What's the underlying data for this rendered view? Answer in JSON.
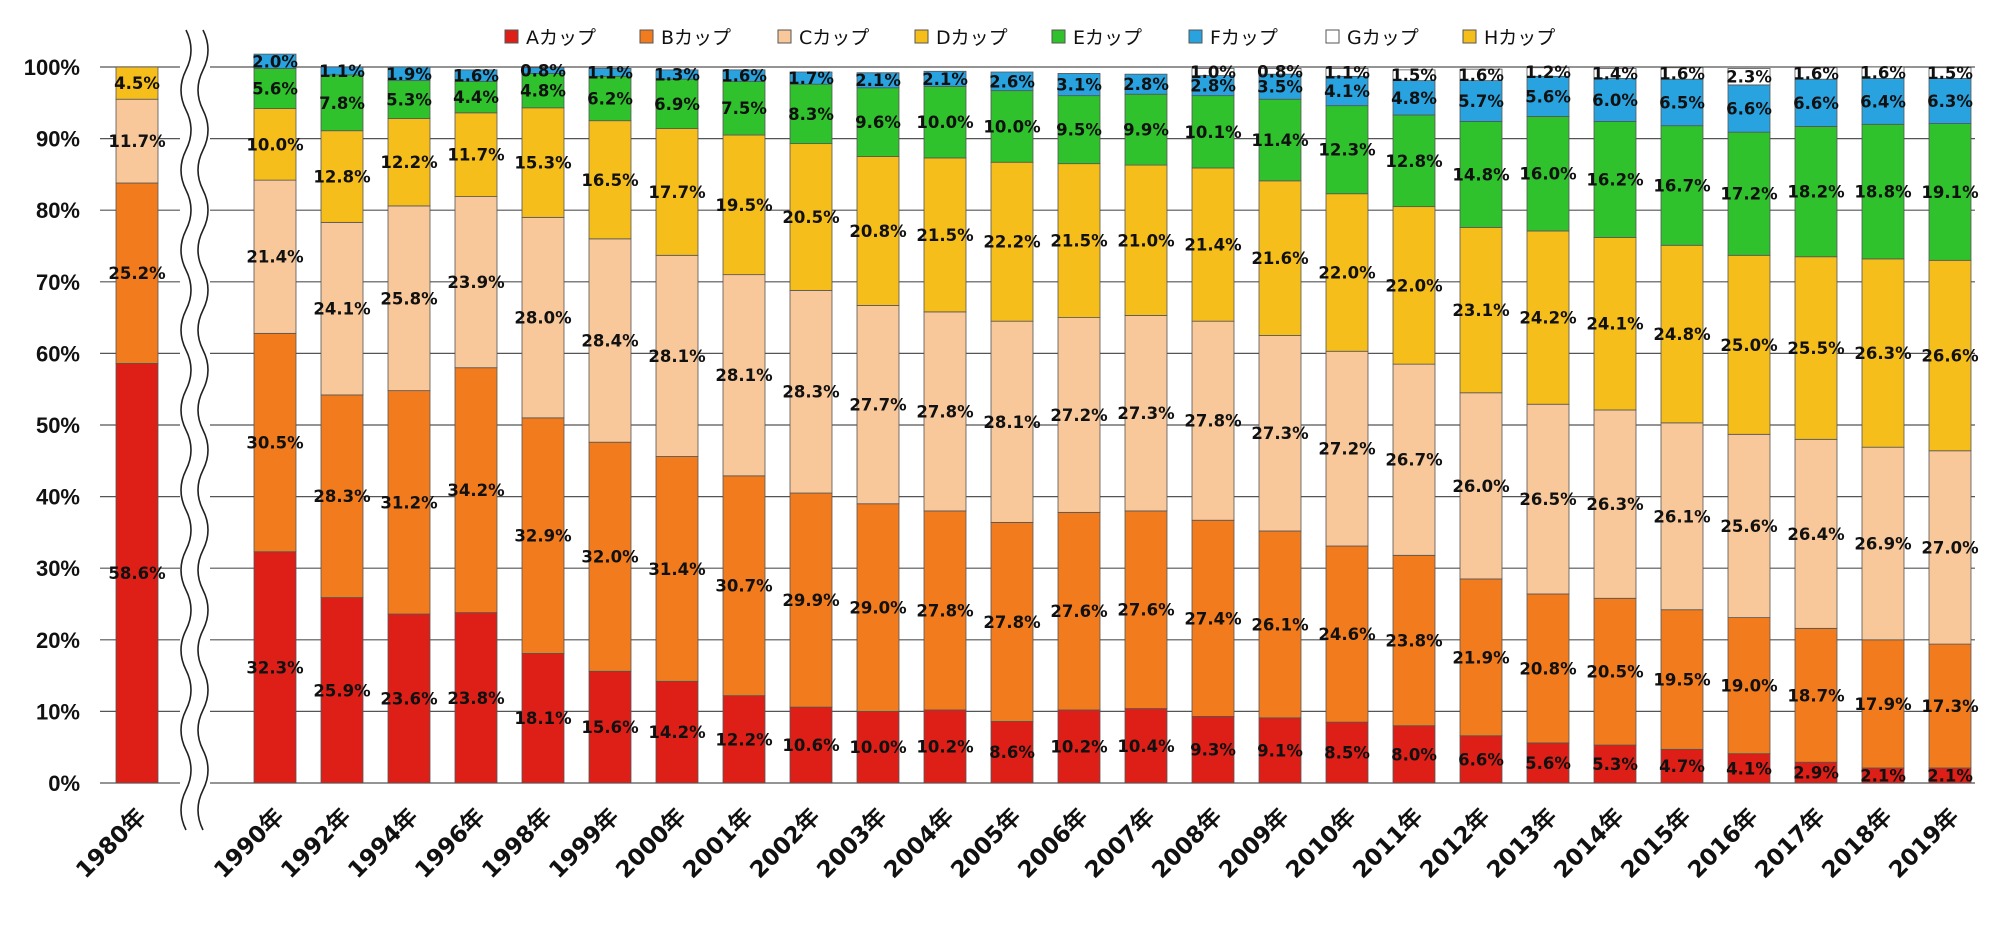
{
  "chart_data": {
    "type": "bar",
    "stacked": true,
    "ylim": [
      0,
      100
    ],
    "yticks": [
      "0%",
      "10%",
      "20%",
      "30%",
      "40%",
      "50%",
      "60%",
      "70%",
      "80%",
      "90%",
      "100%"
    ],
    "grid": true,
    "legend_position": "top",
    "axis_break_after": "1980年",
    "categories": [
      "1980年",
      "1990年",
      "1992年",
      "1994年",
      "1996年",
      "1998年",
      "1999年",
      "2000年",
      "2001年",
      "2002年",
      "2003年",
      "2004年",
      "2005年",
      "2006年",
      "2007年",
      "2008年",
      "2009年",
      "2010年",
      "2011年",
      "2012年",
      "2013年",
      "2014年",
      "2015年",
      "2016年",
      "2017年",
      "2018年",
      "2019年"
    ],
    "series": [
      {
        "name": "Aカップ",
        "color": "#dd1f18",
        "values": [
          58.6,
          32.3,
          25.9,
          23.6,
          23.8,
          18.1,
          15.6,
          14.2,
          12.2,
          10.6,
          10.0,
          10.2,
          8.6,
          10.2,
          10.4,
          9.3,
          9.1,
          8.5,
          8.0,
          6.6,
          5.6,
          5.3,
          4.7,
          4.1,
          2.9,
          2.1,
          2.1
        ],
        "labels": [
          "58.6%",
          "32.3%",
          "25.9%",
          "23.6%",
          "23.8%",
          "18.1%",
          "15.6%",
          "14.2%",
          "12.2%",
          "10.6%",
          "10.0%",
          "10.2%",
          "8.6%",
          "10.2%",
          "10.4%",
          "9.3%",
          "9.1%",
          "8.5%",
          "8.0%",
          "6.6%",
          "5.6%",
          "5.3%",
          "4.7%",
          "4.1%",
          "2.9%",
          "2.1%",
          "2.1%"
        ]
      },
      {
        "name": "Bカップ",
        "color": "#f27b1d",
        "values": [
          25.2,
          30.5,
          28.3,
          31.2,
          34.2,
          32.9,
          32.0,
          31.4,
          30.7,
          29.9,
          29.0,
          27.8,
          27.8,
          27.6,
          27.6,
          27.4,
          26.1,
          24.6,
          23.8,
          21.9,
          20.8,
          20.5,
          19.5,
          19.0,
          18.7,
          17.9,
          17.3
        ],
        "labels": [
          "25.2%",
          "30.5%",
          "28.3%",
          "31.2%",
          "34.2%",
          "32.9%",
          "32.0%",
          "31.4%",
          "30.7%",
          "29.9%",
          "29.0%",
          "27.8%",
          "27.8%",
          "27.6%",
          "27.6%",
          "27.4%",
          "26.1%",
          "24.6%",
          "23.8%",
          "21.9%",
          "20.8%",
          "20.5%",
          "19.5%",
          "19.0%",
          "18.7%",
          "17.9%",
          "17.3%"
        ]
      },
      {
        "name": "Cカップ",
        "color": "#f8c89a",
        "values": [
          11.7,
          21.4,
          24.1,
          25.8,
          23.9,
          28.0,
          28.4,
          28.1,
          28.1,
          28.3,
          27.7,
          27.8,
          28.1,
          27.2,
          27.3,
          27.8,
          27.3,
          27.2,
          26.7,
          26.0,
          26.5,
          26.3,
          26.1,
          25.6,
          26.4,
          26.9,
          27.0
        ],
        "labels": [
          "11.7%",
          "21.4%",
          "24.1%",
          "25.8%",
          "23.9%",
          "28.0%",
          "28.4%",
          "28.1%",
          "28.1%",
          "28.3%",
          "27.7%",
          "27.8%",
          "28.1%",
          "27.2%",
          "27.3%",
          "27.8%",
          "27.3%",
          "27.2%",
          "26.7%",
          "26.0%",
          "26.5%",
          "26.3%",
          "26.1%",
          "25.6%",
          "26.4%",
          "26.9%",
          "27.0%"
        ]
      },
      {
        "name": "Dカップ",
        "color": "#f6be1b",
        "values": [
          4.5,
          10.0,
          12.8,
          12.2,
          11.7,
          15.3,
          16.5,
          17.7,
          19.5,
          20.5,
          20.8,
          21.5,
          22.2,
          21.5,
          21.0,
          21.4,
          21.6,
          22.0,
          22.0,
          23.1,
          24.2,
          24.1,
          24.8,
          25.0,
          25.5,
          26.3,
          26.6
        ],
        "labels": [
          "4.5%",
          "10.0%",
          "12.8%",
          "12.2%",
          "11.7%",
          "15.3%",
          "16.5%",
          "17.7%",
          "19.5%",
          "20.5%",
          "20.8%",
          "21.5%",
          "22.2%",
          "21.5%",
          "21.0%",
          "21.4%",
          "21.6%",
          "22.0%",
          "22.0%",
          "23.1%",
          "24.2%",
          "24.1%",
          "24.8%",
          "25.0%",
          "25.5%",
          "26.3%",
          "26.6%"
        ]
      },
      {
        "name": "Eカップ",
        "color": "#2fc22c",
        "values": [
          0,
          5.6,
          7.8,
          5.3,
          4.4,
          4.8,
          6.2,
          6.9,
          7.5,
          8.3,
          9.6,
          10.0,
          10.0,
          9.5,
          9.9,
          10.1,
          11.4,
          12.3,
          12.8,
          14.8,
          16.0,
          16.2,
          16.7,
          17.2,
          18.2,
          18.8,
          19.1
        ],
        "labels": [
          "",
          "5.6%",
          "7.8%",
          "5.3%",
          "4.4%",
          "4.8%",
          "6.2%",
          "6.9%",
          "7.5%",
          "8.3%",
          "9.6%",
          "10.0%",
          "10.0%",
          "9.5%",
          "9.9%",
          "10.1%",
          "11.4%",
          "12.3%",
          "12.8%",
          "14.8%",
          "16.0%",
          "16.2%",
          "16.7%",
          "17.2%",
          "18.2%",
          "18.8%",
          "19.1%"
        ]
      },
      {
        "name": "Fカップ",
        "color": "#29a3e0",
        "values": [
          0,
          2.0,
          1.1,
          1.9,
          1.6,
          0.8,
          1.1,
          1.3,
          1.6,
          1.7,
          2.1,
          2.1,
          2.6,
          3.1,
          2.8,
          2.8,
          3.5,
          4.1,
          4.8,
          5.7,
          5.6,
          6.0,
          6.5,
          6.6,
          6.6,
          6.4,
          6.3
        ],
        "labels": [
          "",
          "2.0%",
          "1.1%",
          "1.9%",
          "1.6%",
          "0.8%",
          "1.1%",
          "1.3%",
          "1.6%",
          "1.7%",
          "2.1%",
          "2.1%",
          "2.6%",
          "3.1%",
          "2.8%",
          "2.8%",
          "3.5%",
          "4.1%",
          "4.8%",
          "5.7%",
          "5.6%",
          "6.0%",
          "6.5%",
          "6.6%",
          "6.6%",
          "6.4%",
          "6.3%"
        ]
      },
      {
        "name": "Gカップ",
        "color": "#ffffff",
        "values": [
          0,
          0,
          0,
          0,
          0,
          0,
          0,
          0,
          0,
          0,
          0,
          0,
          0,
          0,
          0,
          1.0,
          0.8,
          1.1,
          1.5,
          1.6,
          1.2,
          1.4,
          1.6,
          2.3,
          1.6,
          1.6,
          1.5
        ],
        "labels": [
          "",
          "",
          "",
          "",
          "",
          "",
          "",
          "",
          "",
          "",
          "",
          "",
          "",
          "",
          "",
          "1.0%",
          "0.8%",
          "1.1%",
          "1.5%",
          "1.6%",
          "1.2%",
          "1.4%",
          "1.6%",
          "2.3%",
          "1.6%",
          "1.6%",
          "1.5%"
        ]
      },
      {
        "name": "Hカップ",
        "color": "#f6be1b",
        "values": [
          0,
          0,
          0,
          0,
          0,
          0,
          0,
          0,
          0,
          0,
          0,
          0,
          0,
          0,
          0,
          0,
          0,
          0,
          0,
          0,
          0,
          0,
          0,
          0,
          0,
          0,
          0
        ],
        "labels": [
          "",
          "",
          "",
          "",
          "",
          "",
          "",
          "",
          "",
          "",
          "",
          "",
          "",
          "",
          "",
          "",
          "",
          "",
          "",
          "",
          "",
          "",
          "",
          "",
          "",
          "",
          ""
        ]
      }
    ]
  }
}
